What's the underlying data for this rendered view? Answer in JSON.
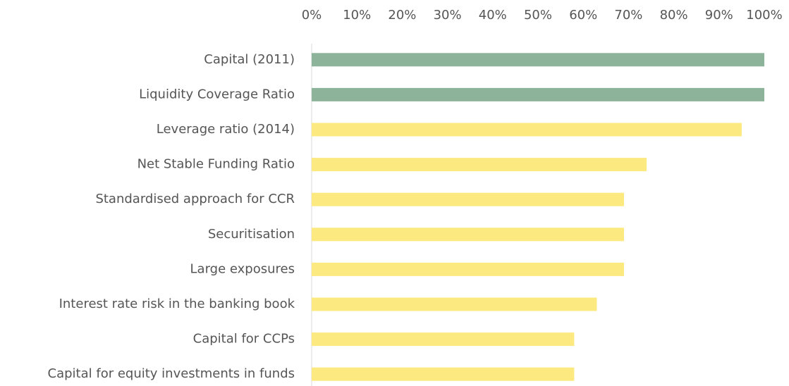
{
  "chart_data": {
    "type": "bar",
    "categories": [
      "Capital (2011)",
      "Liquidity Coverage Ratio",
      "Leverage ratio (2014)",
      "Net Stable Funding Ratio",
      "Standardised approach for CCR",
      "Securitisation",
      "Large exposures",
      "Interest rate risk in the banking book",
      "Capital for CCPs",
      "Capital for equity investments in funds"
    ],
    "values": [
      100,
      100,
      95,
      74,
      69,
      69,
      69,
      63,
      58,
      58
    ],
    "colors": [
      "#8db39a",
      "#8db39a",
      "#fce97f",
      "#fce97f",
      "#fce97f",
      "#fce97f",
      "#fce97f",
      "#fce97f",
      "#fce97f",
      "#fce97f"
    ],
    "xlim": [
      0,
      100
    ],
    "xticks": [
      {
        "value": 0,
        "label": "0%"
      },
      {
        "value": 10,
        "label": "10%"
      },
      {
        "value": 20,
        "label": "20%"
      },
      {
        "value": 30,
        "label": "30%"
      },
      {
        "value": 40,
        "label": "40%"
      },
      {
        "value": 50,
        "label": "50%"
      },
      {
        "value": 60,
        "label": "60%"
      },
      {
        "value": 70,
        "label": "70%"
      },
      {
        "value": 80,
        "label": "80%"
      },
      {
        "value": 90,
        "label": "90%"
      },
      {
        "value": 100,
        "label": "100%"
      }
    ]
  }
}
